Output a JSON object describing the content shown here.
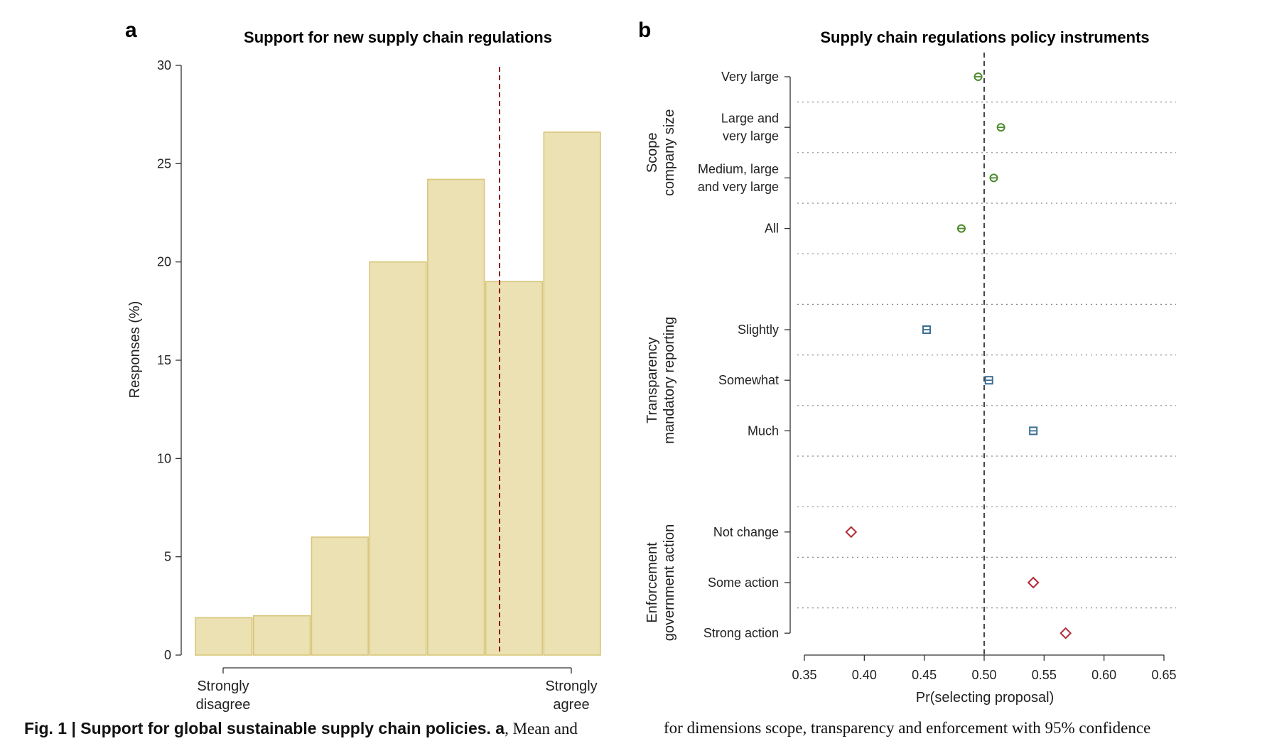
{
  "chart_data": [
    {
      "panel": "a",
      "type": "bar",
      "title": "Support for new supply chain regulations",
      "ylabel": "Responses (%)",
      "ylim": [
        0,
        30
      ],
      "yticks": [
        "0",
        "5",
        "10",
        "15",
        "20",
        "25",
        "30"
      ],
      "categories": [
        "1",
        "2",
        "3",
        "4",
        "5",
        "6",
        "7"
      ],
      "values": [
        1.9,
        2.0,
        6.0,
        20.0,
        24.2,
        19.0,
        26.6
      ],
      "x_end_labels": {
        "left": [
          "Strongly",
          "disagree"
        ],
        "right": [
          "Strongly",
          "agree"
        ]
      },
      "mean_line": 5.75,
      "bar_color": "#ebe1b3",
      "bar_edge": "#d8c67a",
      "mean_color": "#8b1c1c",
      "grid": false
    },
    {
      "panel": "b",
      "type": "scatter",
      "title": "Supply chain regulations policy instruments",
      "xlabel": "Pr(selecting proposal)",
      "xlim": [
        0.35,
        0.65
      ],
      "xticks": [
        "0.35",
        "0.40",
        "0.45",
        "0.50",
        "0.55",
        "0.60",
        "0.65"
      ],
      "reference_line": 0.5,
      "groups": [
        {
          "label": [
            "Scope",
            "company size"
          ],
          "color": "#4e8a2e",
          "marker": "circle",
          "items": [
            {
              "label": [
                "Very large"
              ],
              "value": 0.495
            },
            {
              "label": [
                "Large and",
                "very large"
              ],
              "value": 0.514
            },
            {
              "label": [
                "Medium, large",
                "and very large"
              ],
              "value": 0.508
            },
            {
              "label": [
                "All"
              ],
              "value": 0.481
            }
          ]
        },
        {
          "label": [
            "Transparency",
            "mandatory reporting"
          ],
          "color": "#3b6e94",
          "marker": "square",
          "items": [
            {
              "label": [
                "Slightly"
              ],
              "value": 0.452
            },
            {
              "label": [
                "Somewhat"
              ],
              "value": 0.504
            },
            {
              "label": [
                "Much"
              ],
              "value": 0.541
            }
          ]
        },
        {
          "label": [
            "Enforcement",
            "government action"
          ],
          "color": "#b32b35",
          "marker": "diamond",
          "items": [
            {
              "label": [
                "Not change"
              ],
              "value": 0.389
            },
            {
              "label": [
                "Some action"
              ],
              "value": 0.541
            },
            {
              "label": [
                "Strong action"
              ],
              "value": 0.568
            }
          ]
        }
      ],
      "grid": "dotted horizontal separators"
    }
  ],
  "panel_letters": {
    "a": "a",
    "b": "b"
  },
  "caption": {
    "left_bold": "Fig. 1 | Support for global sustainable supply chain policies. a",
    "left_rest": ", Mean and",
    "right": "for dimensions scope, transparency and enforcement with 95% confidence"
  }
}
